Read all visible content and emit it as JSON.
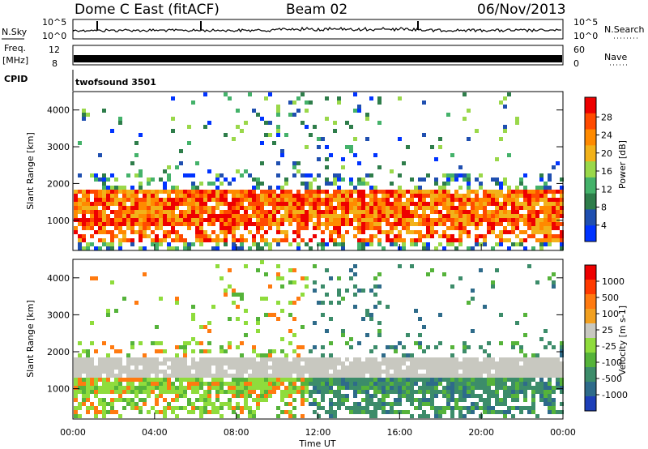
{
  "header": {
    "station": "Dome C East (fitACF)",
    "beam": "Beam 02",
    "date": "06/Nov/2013"
  },
  "param_panels": {
    "nsky": {
      "left_label": "N.Sky",
      "right_label": "N.Search",
      "right_ticks": [
        "10^5",
        "10^0"
      ],
      "left_ticks": [
        "10^5",
        "10^0"
      ]
    },
    "freq": {
      "left_label_1": "Freq.",
      "left_label_2": "[MHz]",
      "left_ticks": [
        "12",
        "8"
      ],
      "right_label": "Nave",
      "right_ticks": [
        "60",
        "0"
      ]
    },
    "cpid": {
      "label": "CPID",
      "program": "twofsound 3501"
    }
  },
  "colors": {
    "power_scale": [
      "#0033ff",
      "#1f4fb0",
      "#2e7d4a",
      "#44b26a",
      "#9ad84a",
      "#f2b21a",
      "#ff8a00",
      "#ff4a00",
      "#ee0000"
    ],
    "velocity_scale": [
      "#1d3fb8",
      "#2e6b8a",
      "#3c8c6a",
      "#55b33a",
      "#8fdc3c",
      "#c8c8c0",
      "#f2a020",
      "#ff7a10",
      "#ff3a00",
      "#ee0000"
    ]
  },
  "chart_data": [
    {
      "type": "heatmap",
      "name": "power",
      "ylabel": "Slant Range [km]",
      "xlabel": "Time UT",
      "x_ticks": [
        "00:00",
        "04:00",
        "08:00",
        "12:00",
        "16:00",
        "20:00",
        "00:00"
      ],
      "y_ticks": [
        "1000",
        "2000",
        "3000",
        "4000"
      ],
      "ylim": [
        180,
        4500
      ],
      "xlim_hours": [
        0,
        24
      ],
      "colorbar": {
        "label": "Power [dB]",
        "ticks": [
          "28",
          "24",
          "20",
          "16",
          "12",
          "8",
          "4"
        ],
        "range": [
          0,
          30
        ]
      }
    },
    {
      "type": "heatmap",
      "name": "velocity",
      "ylabel": "Slant Range [km]",
      "xlabel": "Time UT",
      "x_ticks": [
        "00:00",
        "04:00",
        "08:00",
        "12:00",
        "16:00",
        "20:00",
        "00:00"
      ],
      "y_ticks": [
        "1000",
        "2000",
        "3000",
        "4000"
      ],
      "ylim": [
        180,
        4500
      ],
      "xlim_hours": [
        0,
        24
      ],
      "colorbar": {
        "label": "Velocity [m s-1]",
        "ticks": [
          "1000",
          "500",
          "100",
          "25",
          "-25",
          "-100",
          "-500",
          "-1000"
        ]
      }
    }
  ]
}
